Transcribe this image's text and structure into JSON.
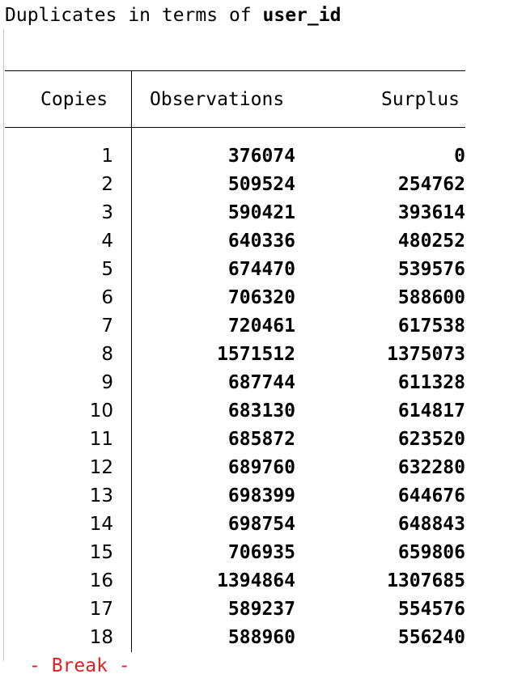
{
  "title": {
    "prefix": "Duplicates in terms of ",
    "variable": "user_id"
  },
  "table": {
    "columns": [
      "Copies",
      "Observations",
      "Surplus"
    ],
    "rows": [
      {
        "copies": "1",
        "observations": "376074",
        "surplus": "0"
      },
      {
        "copies": "2",
        "observations": "509524",
        "surplus": "254762"
      },
      {
        "copies": "3",
        "observations": "590421",
        "surplus": "393614"
      },
      {
        "copies": "4",
        "observations": "640336",
        "surplus": "480252"
      },
      {
        "copies": "5",
        "observations": "674470",
        "surplus": "539576"
      },
      {
        "copies": "6",
        "observations": "706320",
        "surplus": "588600"
      },
      {
        "copies": "7",
        "observations": "720461",
        "surplus": "617538"
      },
      {
        "copies": "8",
        "observations": "1571512",
        "surplus": "1375073"
      },
      {
        "copies": "9",
        "observations": "687744",
        "surplus": "611328"
      },
      {
        "copies": "10",
        "observations": "683130",
        "surplus": "614817"
      },
      {
        "copies": "11",
        "observations": "685872",
        "surplus": "623520"
      },
      {
        "copies": "12",
        "observations": "689760",
        "surplus": "632280"
      },
      {
        "copies": "13",
        "observations": "698399",
        "surplus": "644676"
      },
      {
        "copies": "14",
        "observations": "698754",
        "surplus": "648843"
      },
      {
        "copies": "15",
        "observations": "706935",
        "surplus": "659806"
      },
      {
        "copies": "16",
        "observations": "1394864",
        "surplus": "1307685"
      },
      {
        "copies": "17",
        "observations": "589237",
        "surplus": "554576"
      },
      {
        "copies": "18",
        "observations": "588960",
        "surplus": "556240"
      }
    ]
  },
  "colors": {
    "text": "#000000",
    "rule": "#000000",
    "continuation_text": "#e02020"
  },
  "continuation": {
    "text": "- Break -"
  }
}
